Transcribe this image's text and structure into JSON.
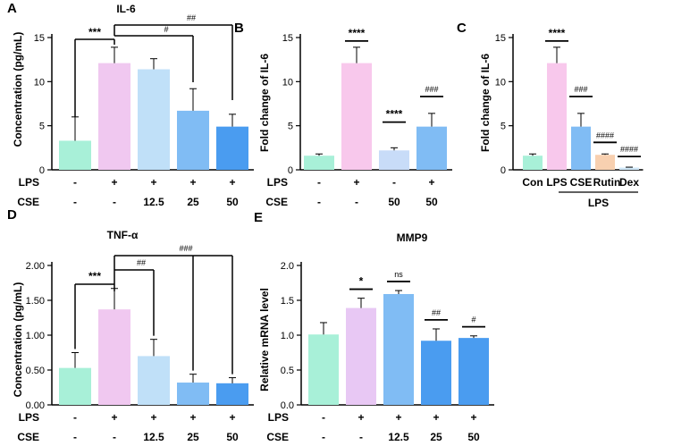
{
  "chart_data": [
    {
      "panel": "A",
      "type": "bar",
      "title": "IL-6",
      "ylabel": "Concentration (pg/mL)",
      "ylim": [
        0,
        15
      ],
      "yticks": [
        0,
        5,
        10,
        15
      ],
      "values": [
        3.3,
        12.1,
        11.4,
        6.7,
        4.9
      ],
      "errors": [
        2.7,
        1.8,
        1.2,
        2.5,
        1.4
      ],
      "colors": [
        "#a8f0d8",
        "#f0c8f0",
        "#c0e0f8",
        "#80bcf4",
        "#4a9cf0"
      ],
      "conditions": [
        {
          "label": "LPS",
          "values": [
            "-",
            "+",
            "+",
            "+",
            "+"
          ]
        },
        {
          "label": "CSE",
          "values": [
            "-",
            "-",
            "12.5",
            "25",
            "50"
          ]
        }
      ],
      "annotations": [
        "***",
        "#",
        "##"
      ]
    },
    {
      "panel": "B",
      "type": "bar",
      "title": "",
      "ylabel": "Fold change of IL-6",
      "ylim": [
        0,
        15
      ],
      "yticks": [
        0,
        5,
        10,
        15
      ],
      "values": [
        1.6,
        12.1,
        2.2,
        4.9
      ],
      "errors": [
        0.2,
        1.8,
        0.3,
        1.5
      ],
      "colors": [
        "#a8f0d8",
        "#f8c8ec",
        "#c8dcf8",
        "#80bcf4"
      ],
      "conditions": [
        {
          "label": "LPS",
          "values": [
            "-",
            "+",
            "-",
            "+"
          ]
        },
        {
          "label": "CSE",
          "values": [
            "-",
            "-",
            "50",
            "50"
          ]
        }
      ],
      "annotations": [
        "****",
        "****",
        "###"
      ]
    },
    {
      "panel": "C",
      "type": "bar",
      "title": "",
      "ylabel": "Fold change of IL-6",
      "ylim": [
        0,
        15
      ],
      "yticks": [
        0,
        5,
        10,
        15
      ],
      "categories": [
        "Con",
        "LPS",
        "CSE",
        "Rutin",
        "Dex"
      ],
      "group_label": "LPS",
      "values": [
        1.6,
        12.1,
        4.9,
        1.7,
        0.25
      ],
      "errors": [
        0.2,
        1.8,
        1.5,
        0.1,
        0.05
      ],
      "colors": [
        "#a8f0d8",
        "#f8c8ec",
        "#80bcf4",
        "#f8d0b0",
        "#d0e8f8"
      ],
      "annotations": [
        "****",
        "###",
        "####",
        "####"
      ]
    },
    {
      "panel": "D",
      "type": "bar",
      "title": "TNF-α",
      "ylabel": "Concentration (pg/mL)",
      "ylim": [
        0,
        2.0
      ],
      "yticks": [
        "0.00",
        "0.50",
        "1.00",
        "1.50",
        "2.00"
      ],
      "values": [
        0.53,
        1.37,
        0.7,
        0.32,
        0.31
      ],
      "errors": [
        0.22,
        0.3,
        0.24,
        0.12,
        0.08
      ],
      "colors": [
        "#a8f0d8",
        "#f0c8f0",
        "#c0e0f8",
        "#80bcf4",
        "#4a9cf0"
      ],
      "conditions": [
        {
          "label": "LPS",
          "values": [
            "-",
            "+",
            "+",
            "+",
            "+"
          ]
        },
        {
          "label": "CSE",
          "values": [
            "-",
            "-",
            "12.5",
            "25",
            "50"
          ]
        }
      ],
      "annotations": [
        "***",
        "##",
        "###"
      ]
    },
    {
      "panel": "E",
      "type": "bar",
      "title": "MMP9",
      "ylabel": "Relative mRNA level",
      "ylim": [
        0,
        2.0
      ],
      "yticks": [
        "0.0",
        "0.5",
        "1.0",
        "1.5",
        "2.0"
      ],
      "values": [
        1.01,
        1.39,
        1.59,
        0.92,
        0.96
      ],
      "errors": [
        0.17,
        0.14,
        0.05,
        0.17,
        0.03
      ],
      "colors": [
        "#a8f0d8",
        "#e8c8f4",
        "#80bcf4",
        "#4a9cf0",
        "#4a9cf0"
      ],
      "conditions": [
        {
          "label": "LPS",
          "values": [
            "-",
            "+",
            "+",
            "+",
            "+"
          ]
        },
        {
          "label": "CSE",
          "values": [
            "-",
            "-",
            "12.5",
            "25",
            "50"
          ]
        }
      ],
      "annotations": [
        "*",
        "ns",
        "##",
        "#"
      ]
    }
  ]
}
